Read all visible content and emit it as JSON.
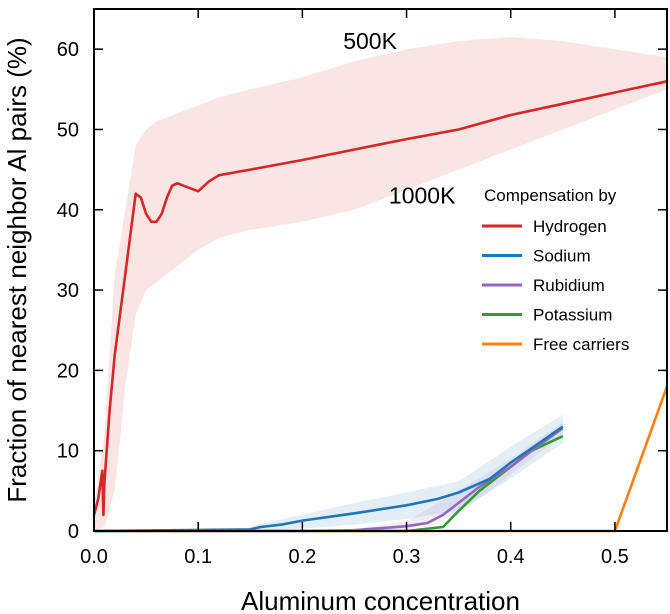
{
  "chart_data": {
    "type": "line",
    "xlabel": "Aluminum concentration",
    "ylabel": "Fraction of nearest neighbor Al pairs (%)",
    "xlim": [
      0.0,
      0.55
    ],
    "ylim": [
      0,
      65
    ],
    "xticks": [
      0.0,
      0.1,
      0.2,
      0.3,
      0.4,
      0.5
    ],
    "xtick_labels": [
      "0.0",
      "0.1",
      "0.2",
      "0.3",
      "0.4",
      "0.5"
    ],
    "yticks": [
      0,
      10,
      20,
      30,
      40,
      50,
      60
    ],
    "ytick_labels": [
      "0",
      "10",
      "20",
      "30",
      "40",
      "50",
      "60"
    ],
    "grid": false,
    "legend": {
      "title": "Compensation by",
      "placement": "right"
    },
    "annotations": [
      {
        "text": "500K",
        "x": 0.265,
        "y": 61.0
      },
      {
        "text": "1000K",
        "x": 0.315,
        "y": 41.8
      }
    ],
    "series": [
      {
        "name": "Hydrogen",
        "color": "#d62728",
        "x": [
          0.0,
          0.004,
          0.008,
          0.009,
          0.01,
          0.015,
          0.02,
          0.03,
          0.04,
          0.045,
          0.05,
          0.055,
          0.06,
          0.065,
          0.07,
          0.075,
          0.08,
          0.09,
          0.1,
          0.11,
          0.12,
          0.15,
          0.2,
          0.25,
          0.3,
          0.35,
          0.4,
          0.45,
          0.5,
          0.55
        ],
        "y": [
          2.0,
          4.0,
          7.5,
          2.0,
          6.0,
          15.0,
          22.0,
          32.0,
          42.0,
          41.5,
          39.5,
          38.5,
          38.5,
          39.5,
          41.5,
          43.0,
          43.3,
          42.8,
          42.3,
          43.5,
          44.3,
          45.0,
          46.2,
          47.5,
          48.8,
          50.0,
          51.8,
          53.2,
          54.6,
          56.0
        ]
      },
      {
        "name": "Sodium",
        "color": "#1f77b4",
        "x": [
          0.0,
          0.15,
          0.16,
          0.18,
          0.2,
          0.25,
          0.3,
          0.33,
          0.35,
          0.38,
          0.4,
          0.42,
          0.45
        ],
        "y": [
          0.0,
          0.2,
          0.5,
          0.8,
          1.3,
          2.2,
          3.2,
          4.0,
          4.8,
          6.5,
          8.5,
          10.3,
          13.0
        ]
      },
      {
        "name": "Rubidium",
        "color": "#9467bd",
        "x": [
          0.0,
          0.2,
          0.25,
          0.3,
          0.32,
          0.335,
          0.35,
          0.37,
          0.4,
          0.42,
          0.45
        ],
        "y": [
          0.0,
          0.0,
          0.1,
          0.6,
          1.0,
          2.0,
          3.5,
          5.5,
          8.0,
          10.0,
          12.8
        ]
      },
      {
        "name": "Potassium",
        "color": "#2ca02c",
        "x": [
          0.0,
          0.3,
          0.335,
          0.35,
          0.37,
          0.4,
          0.42,
          0.45
        ],
        "y": [
          0.0,
          0.0,
          0.5,
          2.5,
          5.0,
          8.0,
          10.0,
          11.8
        ]
      },
      {
        "name": "Free carriers",
        "color": "#ff7f0e",
        "x": [
          0.0,
          0.5,
          0.55
        ],
        "y": [
          0.0,
          0.0,
          18.0
        ]
      }
    ],
    "bands": [
      {
        "name": "Hydrogen",
        "color": "#d62728",
        "x": [
          0.0,
          0.01,
          0.02,
          0.03,
          0.04,
          0.05,
          0.06,
          0.08,
          0.1,
          0.12,
          0.15,
          0.2,
          0.25,
          0.3,
          0.35,
          0.4,
          0.45,
          0.5,
          0.55
        ],
        "lower": [
          0.0,
          0.5,
          5.0,
          18.0,
          27.0,
          30.0,
          31.0,
          33.0,
          35.0,
          36.5,
          37.5,
          38.5,
          40.0,
          42.5,
          45.0,
          47.5,
          50.0,
          52.5,
          55.0
        ],
        "upper": [
          3.0,
          12.0,
          32.0,
          40.0,
          48.0,
          50.0,
          51.0,
          52.0,
          53.0,
          54.0,
          55.0,
          56.5,
          58.5,
          60.0,
          61.0,
          61.5,
          61.0,
          60.0,
          59.0
        ]
      },
      {
        "name": "Sodium",
        "color": "#1f77b4",
        "x": [
          0.15,
          0.2,
          0.25,
          0.3,
          0.35,
          0.4,
          0.45
        ],
        "lower": [
          0.0,
          0.3,
          0.8,
          1.5,
          2.5,
          6.5,
          11.0
        ],
        "upper": [
          0.6,
          2.0,
          3.5,
          4.8,
          6.2,
          10.5,
          14.5
        ]
      },
      {
        "name": "Rubidium",
        "color": "#9467bd",
        "x": [
          0.25,
          0.3,
          0.35,
          0.4,
          0.45
        ],
        "lower": [
          0.0,
          0.2,
          2.0,
          7.0,
          12.0
        ],
        "upper": [
          0.3,
          1.2,
          5.0,
          9.0,
          13.5
        ]
      }
    ]
  }
}
